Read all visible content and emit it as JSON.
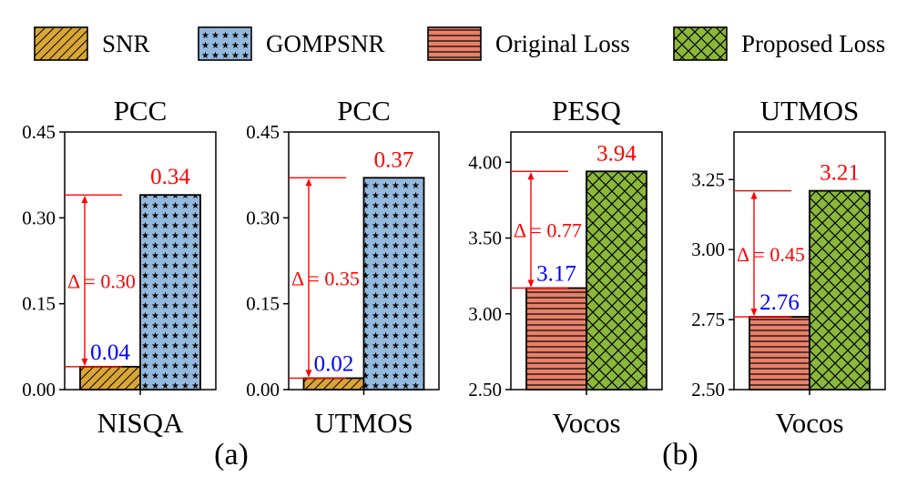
{
  "legend": [
    {
      "label": "SNR",
      "color": "#d9a635",
      "pattern": "diag"
    },
    {
      "label": "GOMPSNR",
      "color": "#93b9dd",
      "pattern": "star"
    },
    {
      "label": "Original Loss",
      "color": "#e8806a",
      "pattern": "hlines"
    },
    {
      "label": "Proposed Loss",
      "color": "#8cb83a",
      "pattern": "cross"
    }
  ],
  "colors": {
    "annotation": "#ff0000",
    "low_value": "#0000ff",
    "frame": "#000000"
  },
  "panel_labels": [
    "(a)",
    "(b)"
  ],
  "chart_data": [
    {
      "type": "bar",
      "title": "PCC",
      "xlabel": "NISQA",
      "ylabel": "",
      "ylim": [
        0,
        0.45
      ],
      "yticks": [
        "0.00",
        "0.15",
        "0.30",
        "0.45"
      ],
      "ytick_values": [
        0,
        0.15,
        0.3,
        0.45
      ],
      "series": [
        {
          "name": "SNR",
          "value": 0.04,
          "label": "0.04"
        },
        {
          "name": "GOMPSNR",
          "value": 0.34,
          "label": "0.34"
        }
      ],
      "delta_label": "Δ = 0.30"
    },
    {
      "type": "bar",
      "title": "PCC",
      "xlabel": "UTMOS",
      "ylabel": "",
      "ylim": [
        0,
        0.45
      ],
      "yticks": [
        "0.00",
        "0.15",
        "0.30",
        "0.45"
      ],
      "ytick_values": [
        0,
        0.15,
        0.3,
        0.45
      ],
      "series": [
        {
          "name": "SNR",
          "value": 0.02,
          "label": "0.02"
        },
        {
          "name": "GOMPSNR",
          "value": 0.37,
          "label": "0.37"
        }
      ],
      "delta_label": "Δ = 0.35"
    },
    {
      "type": "bar",
      "title": "PESQ",
      "xlabel": "Vocos",
      "ylabel": "",
      "ylim": [
        2.5,
        4.2
      ],
      "yticks": [
        "2.50",
        "3.00",
        "3.50",
        "4.00"
      ],
      "ytick_values": [
        2.5,
        3.0,
        3.5,
        4.0
      ],
      "series": [
        {
          "name": "Original Loss",
          "value": 3.17,
          "label": "3.17"
        },
        {
          "name": "Proposed Loss",
          "value": 3.94,
          "label": "3.94"
        }
      ],
      "delta_label": "Δ = 0.77"
    },
    {
      "type": "bar",
      "title": "UTMOS",
      "xlabel": "Vocos",
      "ylabel": "",
      "ylim": [
        2.5,
        3.42
      ],
      "yticks": [
        "2.50",
        "2.75",
        "3.00",
        "3.25"
      ],
      "ytick_values": [
        2.5,
        2.75,
        3.0,
        3.25
      ],
      "series": [
        {
          "name": "Original Loss",
          "value": 2.76,
          "label": "2.76"
        },
        {
          "name": "Proposed Loss",
          "value": 3.21,
          "label": "3.21"
        }
      ],
      "delta_label": "Δ = 0.45"
    }
  ]
}
